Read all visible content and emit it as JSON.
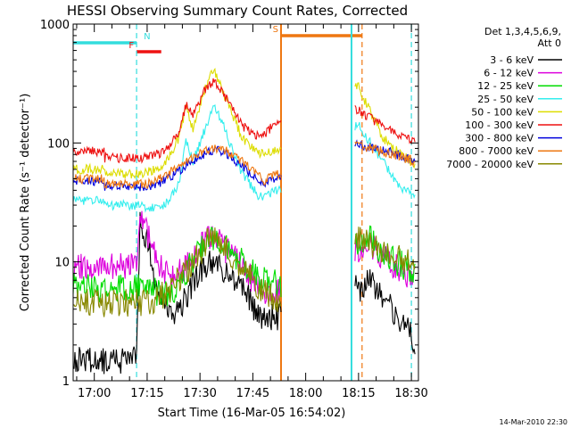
{
  "chart_data": {
    "type": "line",
    "title": "HESSI Observing Summary Count Rates, Corrected",
    "xlabel": "Start Time (16-Mar-05 16:54:02)",
    "ylabel": "Corrected Count Rate (s⁻¹ detector⁻¹)",
    "y_scale": "log",
    "ylim": [
      1,
      1000
    ],
    "xlim": [
      "16:54",
      "18:32"
    ],
    "x_ticks": [
      "17:00",
      "17:15",
      "17:30",
      "17:45",
      "18:00",
      "18:15",
      "18:30"
    ],
    "y_ticks": [
      "1",
      "10",
      "100",
      "1000"
    ],
    "grid": false,
    "legend_placement": "right",
    "legend_header": [
      "Det 1,3,4,5,6,9,",
      "Att 0"
    ],
    "footer_date": "14-Mar-2010 22:30",
    "data_gap": [
      "17:53",
      "18:14"
    ],
    "flags": [
      {
        "label": "N",
        "color": "#33dddd",
        "start": "16:54",
        "end": "17:12"
      },
      {
        "label": "F",
        "color": "#ee1111",
        "start": "17:12",
        "end": "17:19"
      },
      {
        "label": "S",
        "color": "#ee7711",
        "start": "17:53",
        "end": "18:16"
      }
    ],
    "markers": [
      {
        "time": "17:12",
        "color": "#33dddd",
        "style": "dashed"
      },
      {
        "time": "17:53",
        "color": "#ee7711",
        "style": "solid"
      },
      {
        "time": "18:13",
        "color": "#33dddd",
        "style": "solid"
      },
      {
        "time": "18:16",
        "color": "#ee7711",
        "style": "dashed"
      },
      {
        "time": "18:30",
        "color": "#33dddd",
        "style": "dashed"
      }
    ],
    "series": [
      {
        "name": "3 - 6 keV",
        "color": "#000000",
        "points": [
          [
            "16:54",
            1.5
          ],
          [
            "17:12",
            1.5
          ],
          [
            "17:13",
            22
          ],
          [
            "17:15",
            15
          ],
          [
            "17:18",
            5
          ],
          [
            "17:22",
            3.5
          ],
          [
            "17:26",
            5
          ],
          [
            "17:30",
            8
          ],
          [
            "17:33",
            10
          ],
          [
            "17:36",
            9
          ],
          [
            "17:42",
            6
          ],
          [
            "17:47",
            3.5
          ],
          [
            "17:52",
            3.5
          ],
          [
            "18:16",
            6
          ],
          [
            "18:18",
            7
          ],
          [
            "18:22",
            5
          ],
          [
            "18:26",
            3.5
          ],
          [
            "18:31",
            2.2
          ]
        ]
      },
      {
        "name": "6 - 12 keV",
        "color": "#dd00dd",
        "points": [
          [
            "16:54",
            9
          ],
          [
            "17:12",
            9
          ],
          [
            "17:13",
            22
          ],
          [
            "17:15",
            18
          ],
          [
            "17:18",
            10
          ],
          [
            "17:22",
            7
          ],
          [
            "17:26",
            9
          ],
          [
            "17:30",
            13
          ],
          [
            "17:33",
            16
          ],
          [
            "17:36",
            14
          ],
          [
            "17:42",
            9
          ],
          [
            "17:47",
            6
          ],
          [
            "17:52",
            5.5
          ],
          [
            "18:16",
            13
          ],
          [
            "18:18",
            14
          ],
          [
            "18:22",
            11
          ],
          [
            "18:26",
            9
          ],
          [
            "18:31",
            7
          ]
        ]
      },
      {
        "name": "12 - 25 keV",
        "color": "#00dd00",
        "points": [
          [
            "16:54",
            6
          ],
          [
            "17:12",
            6
          ],
          [
            "17:13",
            7
          ],
          [
            "17:18",
            5.5
          ],
          [
            "17:22",
            5
          ],
          [
            "17:26",
            8
          ],
          [
            "17:30",
            13
          ],
          [
            "17:33",
            17
          ],
          [
            "17:36",
            15
          ],
          [
            "17:42",
            10
          ],
          [
            "17:47",
            7
          ],
          [
            "17:52",
            6.5
          ],
          [
            "18:16",
            14
          ],
          [
            "18:18",
            16
          ],
          [
            "18:22",
            12
          ],
          [
            "18:26",
            10
          ],
          [
            "18:31",
            8
          ]
        ]
      },
      {
        "name": "25 - 50 keV",
        "color": "#33eeee",
        "points": [
          [
            "16:54",
            33
          ],
          [
            "17:12",
            30
          ],
          [
            "17:15",
            28
          ],
          [
            "17:20",
            30
          ],
          [
            "17:24",
            45
          ],
          [
            "17:26",
            110
          ],
          [
            "17:28",
            70
          ],
          [
            "17:31",
            120
          ],
          [
            "17:34",
            210
          ],
          [
            "17:37",
            130
          ],
          [
            "17:42",
            55
          ],
          [
            "17:47",
            35
          ],
          [
            "17:52",
            40
          ],
          [
            "18:15",
            140
          ],
          [
            "18:17",
            115
          ],
          [
            "18:22",
            70
          ],
          [
            "18:26",
            45
          ],
          [
            "18:31",
            35
          ]
        ]
      },
      {
        "name": "50 - 100 keV",
        "color": "#dddd00",
        "points": [
          [
            "16:54",
            60
          ],
          [
            "17:12",
            55
          ],
          [
            "17:15",
            57
          ],
          [
            "17:20",
            65
          ],
          [
            "17:24",
            110
          ],
          [
            "17:26",
            200
          ],
          [
            "17:28",
            130
          ],
          [
            "17:31",
            270
          ],
          [
            "17:34",
            420
          ],
          [
            "17:37",
            250
          ],
          [
            "17:42",
            110
          ],
          [
            "17:47",
            80
          ],
          [
            "17:52",
            90
          ],
          [
            "18:15",
            300
          ],
          [
            "18:17",
            220
          ],
          [
            "18:22",
            110
          ],
          [
            "18:26",
            85
          ],
          [
            "18:31",
            65
          ]
        ]
      },
      {
        "name": "100 - 300 keV",
        "color": "#ee1111",
        "points": [
          [
            "16:54",
            85
          ],
          [
            "17:12",
            75
          ],
          [
            "17:15",
            75
          ],
          [
            "17:20",
            85
          ],
          [
            "17:24",
            120
          ],
          [
            "17:26",
            210
          ],
          [
            "17:28",
            170
          ],
          [
            "17:31",
            270
          ],
          [
            "17:34",
            330
          ],
          [
            "17:37",
            250
          ],
          [
            "17:42",
            140
          ],
          [
            "17:47",
            110
          ],
          [
            "17:52",
            150
          ],
          [
            "18:15",
            190
          ],
          [
            "18:17",
            170
          ],
          [
            "18:22",
            140
          ],
          [
            "18:26",
            120
          ],
          [
            "18:31",
            100
          ]
        ]
      },
      {
        "name": "300 - 800 keV",
        "color": "#0000dd",
        "points": [
          [
            "16:54",
            47
          ],
          [
            "17:12",
            43
          ],
          [
            "17:15",
            43
          ],
          [
            "17:20",
            48
          ],
          [
            "17:26",
            65
          ],
          [
            "17:31",
            80
          ],
          [
            "17:34",
            88
          ],
          [
            "17:38",
            80
          ],
          [
            "17:44",
            57
          ],
          [
            "17:48",
            45
          ],
          [
            "17:52",
            50
          ],
          [
            "18:15",
            95
          ],
          [
            "18:20",
            90
          ],
          [
            "18:26",
            80
          ],
          [
            "18:31",
            70
          ]
        ]
      },
      {
        "name": "800 - 7000 keV",
        "color": "#ee7711",
        "points": [
          [
            "16:54",
            50
          ],
          [
            "17:12",
            45
          ],
          [
            "17:15",
            45
          ],
          [
            "17:20",
            52
          ],
          [
            "17:26",
            70
          ],
          [
            "17:31",
            85
          ],
          [
            "17:34",
            90
          ],
          [
            "17:38",
            85
          ],
          [
            "17:44",
            62
          ],
          [
            "17:48",
            48
          ],
          [
            "17:52",
            55
          ],
          [
            "18:15",
            95
          ],
          [
            "18:20",
            88
          ],
          [
            "18:26",
            78
          ],
          [
            "18:31",
            70
          ]
        ]
      },
      {
        "name": "7000 - 20000 keV",
        "color": "#888800",
        "points": [
          [
            "16:54",
            4.5
          ],
          [
            "17:12",
            4.5
          ],
          [
            "17:16",
            4.5
          ],
          [
            "17:22",
            6
          ],
          [
            "17:28",
            10
          ],
          [
            "17:33",
            16
          ],
          [
            "17:36",
            14
          ],
          [
            "17:42",
            9
          ],
          [
            "17:47",
            6
          ],
          [
            "17:52",
            5
          ],
          [
            "18:16",
            15
          ],
          [
            "18:19",
            13
          ],
          [
            "18:24",
            11
          ],
          [
            "18:31",
            10
          ]
        ]
      }
    ]
  }
}
